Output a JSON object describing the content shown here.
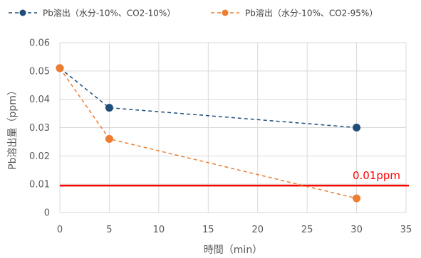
{
  "chart_data": {
    "type": "line",
    "title": "",
    "xlabel": "時間（min）",
    "ylabel": "Pb溶出量（ppm）",
    "xlim": [
      0,
      35
    ],
    "ylim": [
      0,
      0.06
    ],
    "xticks": [
      0,
      5,
      10,
      15,
      20,
      25,
      30,
      35
    ],
    "xtick_labels": [
      "0",
      "5",
      "10",
      "15",
      "20",
      "25",
      "30",
      "35"
    ],
    "yticks": [
      0,
      0.01,
      0.02,
      0.03,
      0.04,
      0.05,
      0.06
    ],
    "ytick_labels": [
      "0",
      "0.01",
      "0.02",
      "0.03",
      "0.04",
      "0.05",
      "0.06"
    ],
    "grid": true,
    "legend_position": "top",
    "series": [
      {
        "name": "Pb溶出（水分-10%、CO2-10%）",
        "color": "#1f4e79",
        "line_style": "dashed",
        "marker": "circle",
        "x": [
          0,
          5,
          30
        ],
        "y": [
          0.051,
          0.037,
          0.03
        ]
      },
      {
        "name": "Pb溶出（水分-10%、CO2-95%）",
        "color": "#ed7d31",
        "line_style": "dashed",
        "marker": "circle",
        "x": [
          0,
          5,
          30
        ],
        "y": [
          0.051,
          0.026,
          0.005
        ]
      }
    ],
    "reference_line": {
      "label": "0.01ppm",
      "y": 0.0095,
      "color": "#ff0000"
    }
  }
}
